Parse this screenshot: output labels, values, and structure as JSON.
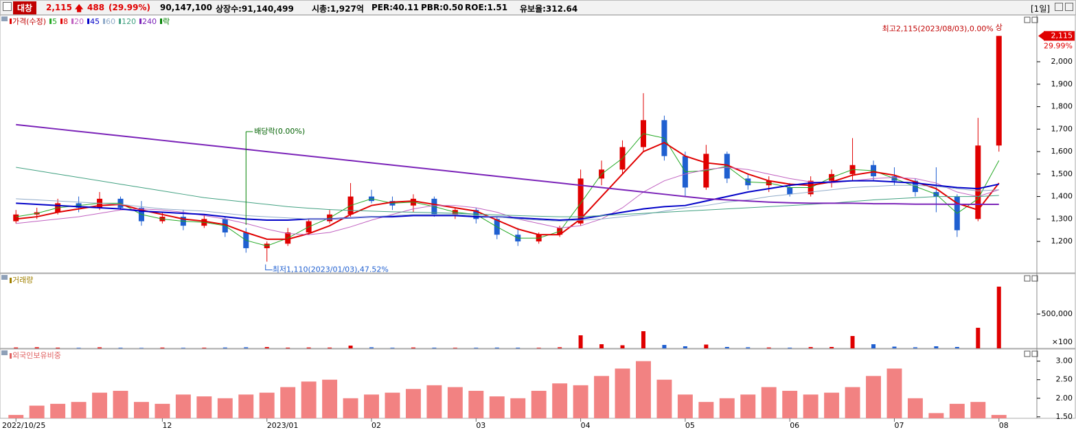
{
  "header": {
    "name": "대창",
    "price": "2,115",
    "change": "488",
    "rate": "(29.99%)",
    "volume": "90,147,100",
    "shares": "상장수:91,140,499",
    "cap": "시총:1,927억",
    "per": "PER:40.11",
    "pbr": "PBR:0.50",
    "roe": "ROE:1.51",
    "reserve": "유보율:312.64",
    "period": "[1일]"
  },
  "chart_data": [
    {
      "type": "candlestick",
      "title": "가격(수정)",
      "up_color": "#e00000",
      "down_color": "#1f5fd0",
      "open": [
        1290,
        1320,
        1330,
        1370,
        1350,
        1390,
        1350,
        1290,
        1310,
        1270,
        1300,
        1240,
        1170,
        1190,
        1240,
        1290,
        1320,
        1400,
        1380,
        1360,
        1390,
        1320,
        1340,
        1300,
        1230,
        1200,
        1230,
        1280,
        1480,
        1520,
        1620,
        1740,
        1580,
        1440,
        1590,
        1480,
        1450,
        1440,
        1410,
        1470,
        1500,
        1540,
        1490,
        1470,
        1420,
        1400,
        1300,
        1627
      ],
      "high": [
        1340,
        1350,
        1390,
        1400,
        1420,
        1400,
        1380,
        1330,
        1340,
        1320,
        1310,
        1260,
        1200,
        1260,
        1300,
        1340,
        1460,
        1430,
        1400,
        1410,
        1400,
        1350,
        1350,
        1310,
        1260,
        1240,
        1270,
        1520,
        1560,
        1650,
        1860,
        1760,
        1600,
        1630,
        1600,
        1500,
        1490,
        1460,
        1490,
        1520,
        1660,
        1560,
        1530,
        1480,
        1530,
        1410,
        1750,
        2115
      ],
      "low": [
        1280,
        1300,
        1320,
        1330,
        1340,
        1340,
        1270,
        1280,
        1250,
        1260,
        1220,
        1150,
        1110,
        1180,
        1230,
        1280,
        1310,
        1370,
        1340,
        1330,
        1310,
        1300,
        1280,
        1210,
        1180,
        1190,
        1220,
        1270,
        1450,
        1500,
        1600,
        1560,
        1400,
        1430,
        1460,
        1430,
        1420,
        1400,
        1400,
        1440,
        1470,
        1470,
        1450,
        1400,
        1330,
        1220,
        1290,
        1600
      ],
      "close": [
        1320,
        1330,
        1370,
        1350,
        1390,
        1350,
        1290,
        1310,
        1270,
        1300,
        1240,
        1170,
        1190,
        1240,
        1290,
        1320,
        1400,
        1380,
        1360,
        1390,
        1320,
        1340,
        1300,
        1230,
        1200,
        1230,
        1260,
        1480,
        1520,
        1620,
        1740,
        1580,
        1440,
        1590,
        1480,
        1450,
        1470,
        1410,
        1470,
        1500,
        1540,
        1490,
        1470,
        1420,
        1400,
        1250,
        1627,
        2115
      ],
      "series": [
        {
          "name": "5",
          "color": "#22a822",
          "values": [
            1310,
            1325,
            1350,
            1360,
            1370,
            1370,
            1320,
            1300,
            1290,
            1285,
            1270,
            1205,
            1180,
            1215,
            1265,
            1305,
            1360,
            1390,
            1370,
            1375,
            1355,
            1330,
            1320,
            1265,
            1215,
            1215,
            1245,
            1370,
            1500,
            1570,
            1680,
            1660,
            1510,
            1515,
            1535,
            1465,
            1460,
            1440,
            1440,
            1485,
            1520,
            1515,
            1480,
            1445,
            1410,
            1325,
            1390,
            1560
          ]
        },
        {
          "name": "8",
          "color": "#e00000",
          "values": [
            1300,
            1310,
            1330,
            1345,
            1360,
            1365,
            1340,
            1320,
            1300,
            1290,
            1275,
            1240,
            1210,
            1210,
            1235,
            1270,
            1320,
            1360,
            1375,
            1380,
            1365,
            1350,
            1335,
            1295,
            1255,
            1230,
            1230,
            1300,
            1400,
            1500,
            1600,
            1640,
            1580,
            1550,
            1540,
            1500,
            1470,
            1455,
            1450,
            1465,
            1495,
            1510,
            1495,
            1465,
            1435,
            1370,
            1340,
            1460
          ]
        },
        {
          "name": "20",
          "color": "#c060c0",
          "values": [
            1280,
            1290,
            1300,
            1310,
            1325,
            1340,
            1345,
            1340,
            1330,
            1315,
            1300,
            1280,
            1255,
            1235,
            1230,
            1240,
            1265,
            1295,
            1320,
            1345,
            1360,
            1360,
            1350,
            1330,
            1300,
            1280,
            1260,
            1270,
            1300,
            1350,
            1420,
            1470,
            1500,
            1520,
            1530,
            1520,
            1500,
            1480,
            1465,
            1460,
            1470,
            1480,
            1485,
            1480,
            1460,
            1420,
            1400,
            1430
          ]
        },
        {
          "name": "45",
          "color": "#0000c8",
          "values": [
            1370,
            1365,
            1360,
            1355,
            1350,
            1345,
            1335,
            1330,
            1325,
            1320,
            1310,
            1300,
            1295,
            1295,
            1300,
            1300,
            1305,
            1310,
            1310,
            1315,
            1315,
            1315,
            1310,
            1310,
            1305,
            1300,
            1295,
            1300,
            1315,
            1330,
            1345,
            1355,
            1360,
            1380,
            1400,
            1420,
            1435,
            1450,
            1460,
            1465,
            1470,
            1470,
            1465,
            1460,
            1450,
            1440,
            1435,
            1455
          ]
        },
        {
          "name": "60",
          "color": "#8faac8",
          "values": [
            1390,
            1385,
            1380,
            1375,
            1370,
            1365,
            1355,
            1345,
            1340,
            1335,
            1325,
            1315,
            1310,
            1305,
            1300,
            1300,
            1305,
            1310,
            1315,
            1320,
            1320,
            1320,
            1315,
            1310,
            1300,
            1295,
            1290,
            1295,
            1300,
            1310,
            1320,
            1335,
            1350,
            1360,
            1375,
            1385,
            1400,
            1410,
            1420,
            1430,
            1440,
            1445,
            1450,
            1450,
            1445,
            1435,
            1425,
            1430
          ]
        },
        {
          "name": "120",
          "color": "#40a080",
          "values": [
            1530,
            1515,
            1500,
            1485,
            1470,
            1455,
            1440,
            1425,
            1410,
            1395,
            1385,
            1375,
            1365,
            1355,
            1348,
            1342,
            1338,
            1335,
            1332,
            1330,
            1328,
            1325,
            1322,
            1318,
            1315,
            1312,
            1310,
            1310,
            1315,
            1320,
            1325,
            1330,
            1335,
            1340,
            1345,
            1350,
            1355,
            1360,
            1365,
            1370,
            1378,
            1385,
            1390,
            1395,
            1400,
            1400,
            1400,
            1405
          ]
        },
        {
          "name": "240",
          "color": "#7a22b8",
          "values": [
            1720,
            1710,
            1700,
            1690,
            1680,
            1670,
            1660,
            1650,
            1640,
            1630,
            1620,
            1610,
            1600,
            1590,
            1580,
            1570,
            1560,
            1550,
            1540,
            1530,
            1520,
            1510,
            1500,
            1490,
            1480,
            1470,
            1460,
            1450,
            1440,
            1430,
            1420,
            1410,
            1400,
            1390,
            1385,
            1380,
            1375,
            1372,
            1370,
            1370,
            1370,
            1368,
            1368,
            1366,
            1366,
            1365,
            1365,
            1365
          ]
        }
      ],
      "ex_div_legend": "락",
      "ex_div_color": "#008000",
      "ylim": [
        1066,
        2168
      ],
      "yticks": [
        {
          "value": 1200,
          "label": "1,200"
        },
        {
          "value": 1300,
          "label": "1,300"
        },
        {
          "value": 1400,
          "label": "1,400"
        },
        {
          "value": 1500,
          "label": "1,500"
        },
        {
          "value": 1600,
          "label": "1,600"
        },
        {
          "value": 1700,
          "label": "1,700"
        },
        {
          "value": 1800,
          "label": "1,800"
        },
        {
          "value": 1900,
          "label": "1,900"
        },
        {
          "value": 2000,
          "label": "2,000"
        }
      ],
      "annotations": {
        "dividend": "배당락(0.00%)",
        "low": "최저1,110(2023/01/03),47.52%",
        "high": "최고2,115(2023/08/03),0.00%",
        "limit": "상"
      },
      "price_tag": {
        "value": 2115,
        "label": "2,115"
      },
      "tag_rate": "29.99%"
    },
    {
      "type": "bar",
      "title": "거래량",
      "unit": "×100",
      "values": [
        12000,
        15000,
        10000,
        8000,
        14000,
        9000,
        7000,
        11000,
        8000,
        9000,
        12000,
        15000,
        18000,
        10000,
        12000,
        11000,
        40000,
        15000,
        9000,
        12000,
        10000,
        8000,
        9000,
        11000,
        10000,
        8000,
        15000,
        190000,
        60000,
        45000,
        250000,
        50000,
        30000,
        55000,
        20000,
        15000,
        12000,
        10000,
        18000,
        20000,
        180000,
        60000,
        25000,
        15000,
        30000,
        20000,
        300000,
        900000
      ],
      "ylim": [
        0,
        960000
      ],
      "yticks": [
        {
          "value": 500000,
          "label": "500,000"
        }
      ]
    },
    {
      "type": "bar",
      "title": "외국인보유비중",
      "color": "#f28282",
      "categories": [
        "2022/10/25",
        null,
        null,
        null,
        null,
        null,
        null,
        "12",
        null,
        null,
        null,
        null,
        "2023/01",
        null,
        null,
        null,
        null,
        "02",
        null,
        null,
        null,
        null,
        "03",
        null,
        null,
        null,
        null,
        "04",
        null,
        null,
        null,
        null,
        "05",
        null,
        null,
        null,
        null,
        "06",
        null,
        null,
        null,
        null,
        "07",
        null,
        null,
        null,
        null,
        "08"
      ],
      "values": [
        1.55,
        1.8,
        1.85,
        1.9,
        2.15,
        2.2,
        1.9,
        1.85,
        2.1,
        2.05,
        2.0,
        2.1,
        2.15,
        2.3,
        2.45,
        2.5,
        2.0,
        2.1,
        2.15,
        2.25,
        2.35,
        2.3,
        2.2,
        2.05,
        2.0,
        2.2,
        2.4,
        2.35,
        2.6,
        2.8,
        3.0,
        2.5,
        2.1,
        1.9,
        2.0,
        2.1,
        2.3,
        2.2,
        2.1,
        2.15,
        2.3,
        2.6,
        2.8,
        2.0,
        1.6,
        1.85,
        1.9,
        1.55
      ],
      "ylim": [
        1.46,
        3.16
      ],
      "yticks": [
        {
          "value": 1.5,
          "label": "1.50"
        },
        {
          "value": 2,
          "label": "2.00"
        },
        {
          "value": 2.5,
          "label": "2.50"
        },
        {
          "value": 3,
          "label": "3.00"
        }
      ]
    }
  ]
}
